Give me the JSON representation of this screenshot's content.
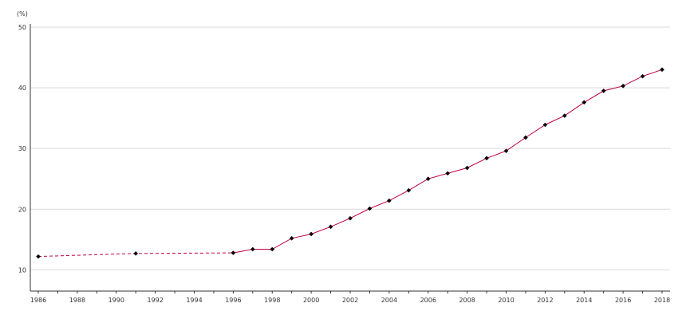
{
  "chart_data": {
    "type": "line",
    "title": "",
    "xlabel": "",
    "ylabel": "",
    "unit_label": "(%)",
    "xlim": [
      1986,
      2018
    ],
    "ylim": [
      6.5,
      50
    ],
    "y_ticks": [
      10,
      20,
      30,
      40,
      50
    ],
    "x_ticks": [
      1986,
      1988,
      1990,
      1992,
      1994,
      1996,
      1998,
      2000,
      2002,
      2004,
      2006,
      2008,
      2010,
      2012,
      2014,
      2016,
      2018
    ],
    "grid": "horizontal",
    "line_color": "#c0003c",
    "marker_color": "#000000",
    "dashed_through": 1996,
    "series": [
      {
        "points": [
          {
            "x": 1986,
            "y": 12.2
          },
          {
            "x": 1991,
            "y": 12.7
          },
          {
            "x": 1996,
            "y": 12.8
          },
          {
            "x": 1997,
            "y": 13.4
          },
          {
            "x": 1998,
            "y": 13.4
          },
          {
            "x": 1999,
            "y": 15.2
          },
          {
            "x": 2000,
            "y": 15.9
          },
          {
            "x": 2001,
            "y": 17.1
          },
          {
            "x": 2002,
            "y": 18.5
          },
          {
            "x": 2003,
            "y": 20.1
          },
          {
            "x": 2004,
            "y": 21.4
          },
          {
            "x": 2005,
            "y": 23.1
          },
          {
            "x": 2006,
            "y": 25.0
          },
          {
            "x": 2007,
            "y": 25.9
          },
          {
            "x": 2008,
            "y": 26.8
          },
          {
            "x": 2009,
            "y": 28.4
          },
          {
            "x": 2010,
            "y": 29.6
          },
          {
            "x": 2011,
            "y": 31.8
          },
          {
            "x": 2012,
            "y": 33.9
          },
          {
            "x": 2013,
            "y": 35.4
          },
          {
            "x": 2014,
            "y": 37.6
          },
          {
            "x": 2015,
            "y": 39.5
          },
          {
            "x": 2016,
            "y": 40.3
          },
          {
            "x": 2017,
            "y": 41.9
          },
          {
            "x": 2018,
            "y": 43.0
          }
        ]
      }
    ]
  }
}
